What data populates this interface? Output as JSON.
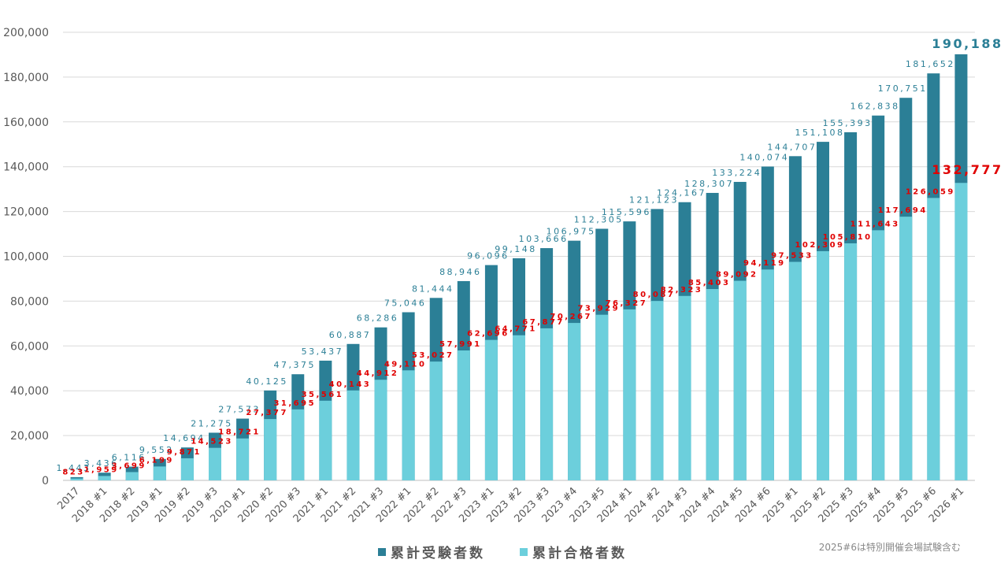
{
  "chart_data": {
    "type": "bar",
    "categories": [
      "2017",
      "2018 #1",
      "2018 #2",
      "2019 #1",
      "2019 #2",
      "2019 #3",
      "2020 #1",
      "2020 #2",
      "2020 #3",
      "2021 #1",
      "2021 #2",
      "2021 #3",
      "2022 #1",
      "2022 #2",
      "2022 #3",
      "2023 #1",
      "2023 #2",
      "2023 #3",
      "2023 #4",
      "2023 #5",
      "2024 #1",
      "2024 #2",
      "2024 #3",
      "2024 #4",
      "2024 #5",
      "2024 #6",
      "2025 #1",
      "2025 #2",
      "2025 #3",
      "2025 #4",
      "2025 #5",
      "2025 #6",
      "2026 #1"
    ],
    "series": [
      {
        "name": "累計受験者数",
        "color": "#2b7f96",
        "label_color": "#2b7f96",
        "values": [
          1443,
          3436,
          6116,
          9552,
          14694,
          21275,
          27573,
          40125,
          47375,
          53437,
          60887,
          68286,
          75046,
          81444,
          88946,
          96096,
          99148,
          103666,
          106975,
          112305,
          115596,
          121123,
          124167,
          128307,
          133224,
          140074,
          144707,
          151108,
          155393,
          162838,
          170751,
          181652,
          190188
        ],
        "value_labels": [
          "1,443",
          "3,436",
          "6,116",
          "9,552",
          "14,694",
          "21,275",
          "27,573",
          "40,125",
          "47,375",
          "53,437",
          "60,887",
          "68,286",
          "75,046",
          "81,444",
          "88,946",
          "96,096",
          "99,148",
          "103,666",
          "106,975",
          "112,305",
          "115,596",
          "121,123",
          "124,167",
          "128,307",
          "133,224",
          "140,074",
          "144,707",
          "151,108",
          "155,393",
          "162,838",
          "170,751",
          "181,652",
          "190,188"
        ]
      },
      {
        "name": "累計合格者数",
        "color": "#6ccfdc",
        "label_color": "#e00000",
        "values": [
          823,
          1959,
          3699,
          6199,
          9871,
          14523,
          18721,
          27377,
          31695,
          35561,
          40143,
          44912,
          49110,
          53027,
          57991,
          62696,
          64771,
          67877,
          70267,
          73929,
          76327,
          80087,
          82323,
          85403,
          89092,
          94119,
          97533,
          102309,
          105810,
          111643,
          117694,
          126059,
          132777
        ],
        "value_labels": [
          "823",
          "1,959",
          "3,699",
          "6,199",
          "9,871",
          "14,523",
          "18,721",
          "27,377",
          "31,695",
          "35,561",
          "40,143",
          "44,912",
          "49,110",
          "53,027",
          "57,991",
          "62,696",
          "64,771",
          "67,877",
          "70,267",
          "73,929",
          "76,327",
          "80,087",
          "82,323",
          "85,403",
          "89,092",
          "94,119",
          "97,533",
          "102,309",
          "105,810",
          "111,643",
          "117,694",
          "126,059",
          "132,777"
        ]
      }
    ],
    "ylim": [
      0,
      200000
    ],
    "yticks": [
      0,
      {
        "value": 20000,
        "label": "20,000"
      },
      {
        "value": 40000,
        "label": "40,000"
      },
      {
        "value": 60000,
        "label": "60,000"
      },
      {
        "value": 80000,
        "label": "80,000"
      },
      {
        "value": 100000,
        "label": "100,000"
      },
      {
        "value": 120000,
        "label": "120,000"
      },
      {
        "value": 140000,
        "label": "140,000"
      },
      {
        "value": 160000,
        "label": "160,000"
      },
      {
        "value": 180000,
        "label": "180,000"
      },
      {
        "value": 200000,
        "label": "200,000"
      }
    ],
    "grid": true,
    "legend": "bottom",
    "annotation": "2025#6は特別開催会場試験含む"
  }
}
